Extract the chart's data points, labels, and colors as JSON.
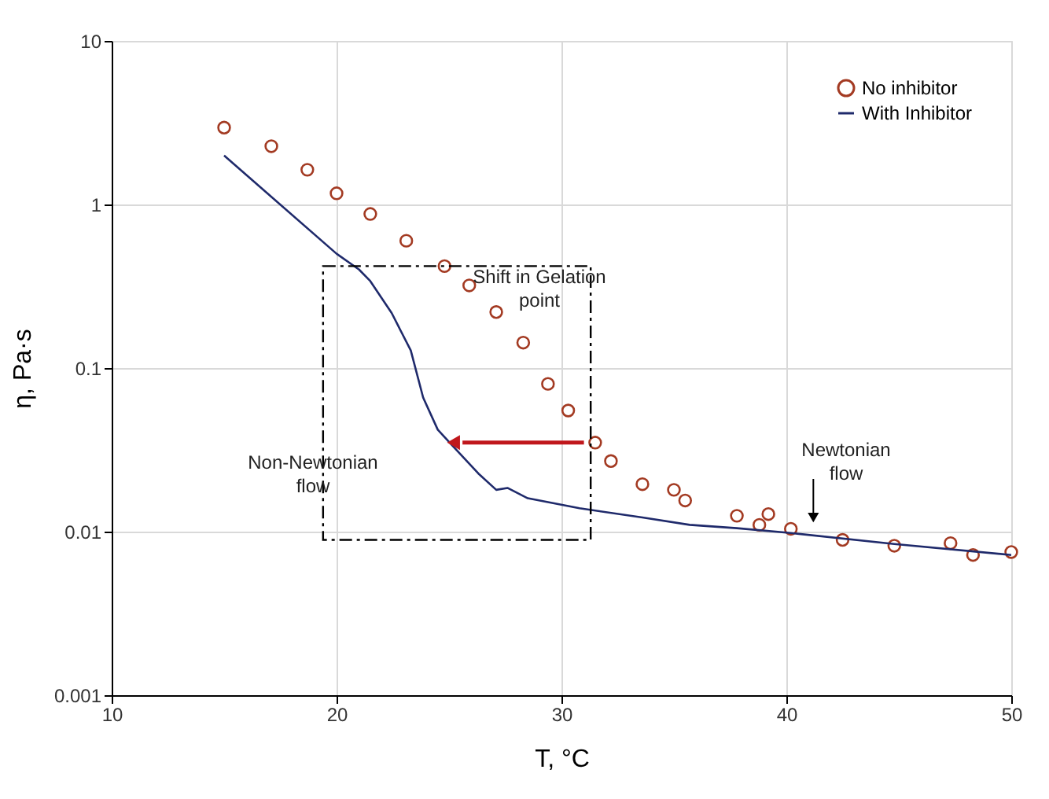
{
  "chart_data": {
    "type": "scatter",
    "xlabel": "T, °C",
    "ylabel": "η, Pa·s",
    "xlim": [
      10,
      50
    ],
    "xticks": [
      10,
      20,
      30,
      40,
      50
    ],
    "ylim": [
      0.001,
      10
    ],
    "yticks": [
      0.001,
      0.01,
      0.1,
      1,
      10
    ],
    "log": "y",
    "grid": true,
    "legend": "top right",
    "series": [
      {
        "name": "No inhibitor",
        "marker": "circle",
        "color": "#a33a22",
        "x": [
          15,
          17.1,
          18.7,
          20,
          21.5,
          23.1,
          24.8,
          25.9,
          27.1,
          28.3,
          29.4,
          30.3,
          31.5,
          32.2,
          33.6,
          35,
          35.5,
          37.8,
          38.8,
          39.2,
          40.2,
          42.5,
          44.8,
          47.3,
          48.3,
          50
        ],
        "values": [
          2.95,
          2.27,
          1.63,
          1.17,
          0.875,
          0.6,
          0.42,
          0.32,
          0.22,
          0.143,
          0.08,
          0.055,
          0.035,
          0.027,
          0.0195,
          0.018,
          0.0155,
          0.0125,
          0.011,
          0.0128,
          0.0104,
          0.0089,
          0.0082,
          0.0085,
          0.0072,
          0.0075
        ]
      },
      {
        "name": "With Inhibitor",
        "type": "line",
        "marker": "none",
        "line_style": "solid",
        "color": "#1f2a6b",
        "x": [
          15,
          20,
          21,
          21.5,
          22.45,
          23.3,
          23.85,
          24.5,
          25.2,
          26.3,
          27.1,
          27.6,
          28.5,
          30.8,
          33.6,
          35.7,
          37.8,
          40.2,
          44.8,
          50
        ],
        "values": [
          1.99,
          0.5,
          0.4,
          0.34,
          0.217,
          0.128,
          0.066,
          0.042,
          0.033,
          0.0227,
          0.018,
          0.0185,
          0.016,
          0.0139,
          0.0122,
          0.011,
          0.0105,
          0.0098,
          0.0084,
          0.0072
        ]
      }
    ],
    "annotations": [
      "Shift in Gelation point",
      "Non-Newtonian flow",
      "Newtonian flow"
    ]
  }
}
